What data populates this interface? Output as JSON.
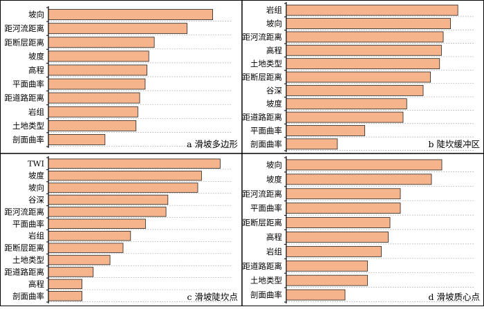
{
  "style": {
    "bar_color": "#F5B48C",
    "bar_stroke": "#222222",
    "grid_color": "#999999",
    "border_color": "#000000"
  },
  "chart_data": [
    {
      "type": "bar",
      "orientation": "horizontal",
      "caption": "a  滑坡多边形",
      "categories": [
        "坡向",
        "距河流距离",
        "距断层距离",
        "坡度",
        "高程",
        "平面曲率",
        "距道路距离",
        "岩组",
        "土地类型",
        "剖面曲率"
      ],
      "values": [
        0.9,
        0.76,
        0.58,
        0.55,
        0.54,
        0.53,
        0.5,
        0.49,
        0.48,
        0.31
      ],
      "xlim": [
        0,
        1
      ],
      "grid": true
    },
    {
      "type": "bar",
      "orientation": "horizontal",
      "caption": "b  陡坎缓冲区",
      "categories": [
        "岩组",
        "坡向",
        "距河流距离",
        "高程",
        "土地类型",
        "距断层距离",
        "谷深",
        "坡度",
        "距道路距离",
        "平面曲率",
        "剖面曲率"
      ],
      "values": [
        0.94,
        0.9,
        0.86,
        0.85,
        0.84,
        0.79,
        0.75,
        0.66,
        0.64,
        0.43,
        0.28
      ],
      "xlim": [
        0,
        1
      ],
      "grid": true
    },
    {
      "type": "bar",
      "orientation": "horizontal",
      "caption": "c  滑坡陡坎点",
      "categories": [
        "TWI",
        "坡度",
        "坡向",
        "谷深",
        "距河流距离",
        "平面曲率",
        "岩组",
        "距断层距离",
        "土地类型",
        "距道路距离",
        "高程",
        "剖面曲率"
      ],
      "values": [
        0.92,
        0.82,
        0.8,
        0.64,
        0.63,
        0.52,
        0.44,
        0.4,
        0.33,
        0.24,
        0.18,
        0.18
      ],
      "xlim": [
        0,
        1
      ],
      "grid": true
    },
    {
      "type": "bar",
      "orientation": "horizontal",
      "caption": "d  滑坡质心点",
      "categories": [
        "坡向",
        "坡度",
        "距河流距离",
        "平面曲率",
        "距断层距离",
        "高程",
        "岩组",
        "距道路距离",
        "土地类型",
        "剖面曲率"
      ],
      "values": [
        0.9,
        0.84,
        0.66,
        0.66,
        0.6,
        0.59,
        0.55,
        0.47,
        0.47,
        0.34
      ],
      "xlim": [
        0,
        1
      ],
      "grid": true
    }
  ]
}
